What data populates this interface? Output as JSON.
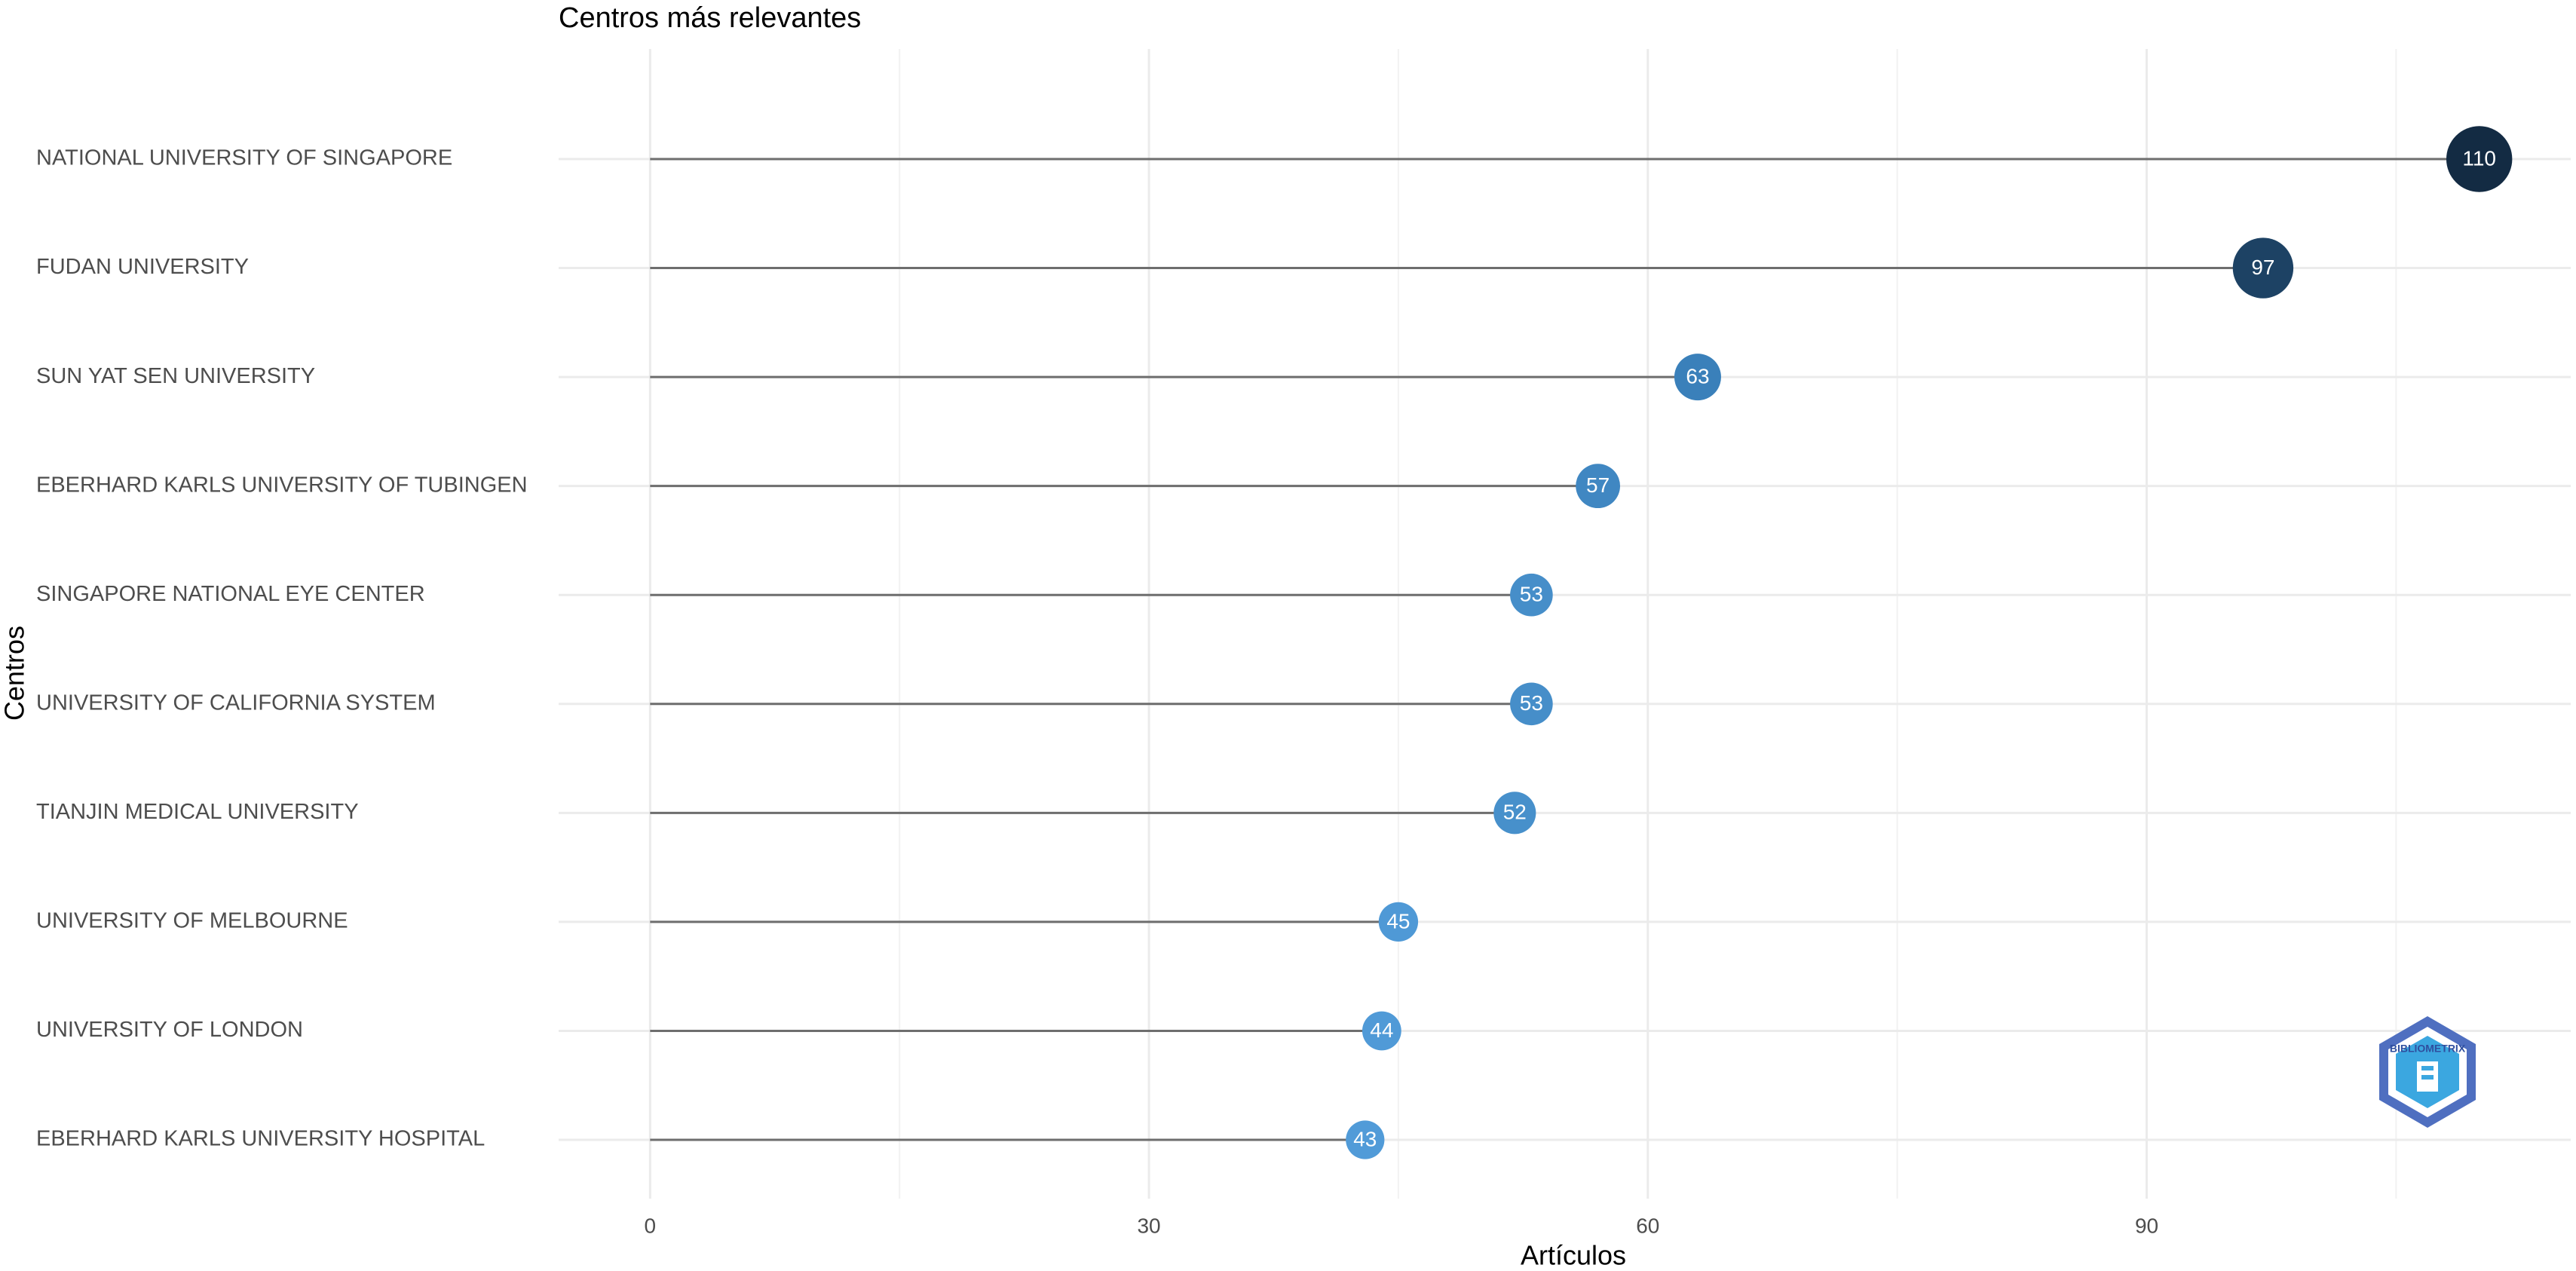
{
  "chart_data": {
    "type": "lollipop",
    "title": "Centros más relevantes",
    "x_label": "Artículos",
    "y_label": "Centros",
    "categories": [
      "NATIONAL UNIVERSITY OF SINGAPORE",
      "FUDAN UNIVERSITY",
      "SUN YAT SEN UNIVERSITY",
      "EBERHARD KARLS UNIVERSITY OF TUBINGEN",
      "SINGAPORE NATIONAL EYE CENTER",
      "UNIVERSITY OF CALIFORNIA SYSTEM",
      "TIANJIN MEDICAL UNIVERSITY",
      "UNIVERSITY OF MELBOURNE",
      "UNIVERSITY OF LONDON",
      "EBERHARD KARLS UNIVERSITY HOSPITAL"
    ],
    "values": [
      110,
      97,
      63,
      57,
      53,
      53,
      52,
      45,
      44,
      43
    ],
    "colors": [
      "#132b43",
      "#1d4264",
      "#3a80ba",
      "#4087c2",
      "#468ec9",
      "#468ec9",
      "#4790cb",
      "#4f99d6",
      "#509ad7",
      "#519bd8"
    ],
    "xlim": [
      -5.5,
      115.5
    ],
    "xticks": [
      0,
      30,
      60,
      90
    ],
    "x_minor_grid": [
      15,
      45,
      75,
      105
    ],
    "grid": true,
    "logo_text": "BIBLIOMETRIX"
  }
}
